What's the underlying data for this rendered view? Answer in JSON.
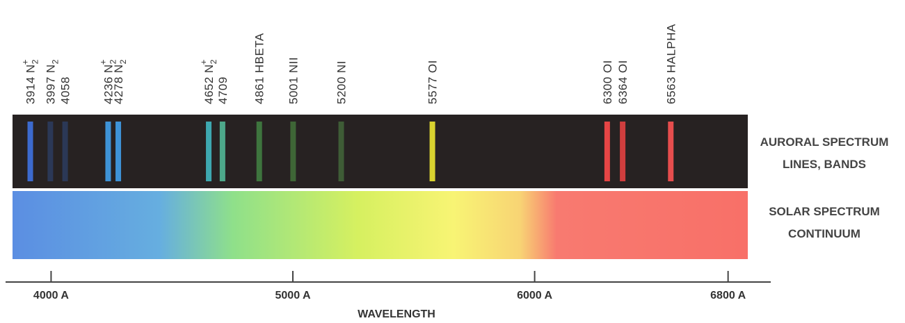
{
  "chart_data": {
    "type": "spectrum",
    "xlabel": "WAVELENGTH",
    "xlim": [
      3806,
      6988
    ],
    "xticks": [
      {
        "value": 4000,
        "label": "4000 A"
      },
      {
        "value": 5000,
        "label": "5000 A"
      },
      {
        "value": 6000,
        "label": "6000 A"
      },
      {
        "value": 6800,
        "label": "6800 A"
      }
    ],
    "band_labels": {
      "auroral": [
        "AURORAL SPECTRUM",
        "LINES, BANDS"
      ],
      "solar": [
        "SOLAR SPECTRUM",
        "CONTINUUM"
      ]
    },
    "lines": [
      {
        "wavelength": 3914,
        "label": "3914",
        "species": "N",
        "sub": "2",
        "sup": "+",
        "color": "#3d6fd8"
      },
      {
        "wavelength": 3997,
        "label": "3997",
        "species": "N",
        "sub": "2",
        "color": "#2b3a5a"
      },
      {
        "wavelength": 4058,
        "label": "4058",
        "color": "#2b3a5a"
      },
      {
        "wavelength": 4236,
        "label": "4236",
        "species": "N",
        "sub": "2",
        "sup": "+",
        "color": "#3f9ae2"
      },
      {
        "wavelength": 4278,
        "label": "4278",
        "species": "N",
        "sub": "2",
        "color": "#3f9ae2"
      },
      {
        "wavelength": 4652,
        "label": "4652",
        "species": "N",
        "sub": "2",
        "sup": "+",
        "color": "#3fb0b8"
      },
      {
        "wavelength": 4709,
        "label": "4709",
        "color": "#4fb090"
      },
      {
        "wavelength": 4861,
        "label": "4861",
        "species": "HBETA",
        "color": "#3f7a40"
      },
      {
        "wavelength": 5001,
        "label": "5001",
        "species": "NII",
        "color": "#3f6a38"
      },
      {
        "wavelength": 5200,
        "label": "5200",
        "species": "NI",
        "color": "#3f6038"
      },
      {
        "wavelength": 5577,
        "label": "5577",
        "species": "OI",
        "color": "#e2dc30"
      },
      {
        "wavelength": 6300,
        "label": "6300",
        "species": "OI",
        "color": "#f04848"
      },
      {
        "wavelength": 6364,
        "label": "6364",
        "species": "OI",
        "color": "#d84040"
      },
      {
        "wavelength": 6563,
        "label": "6563",
        "species": "HALPHA",
        "color": "#f05050"
      }
    ]
  }
}
